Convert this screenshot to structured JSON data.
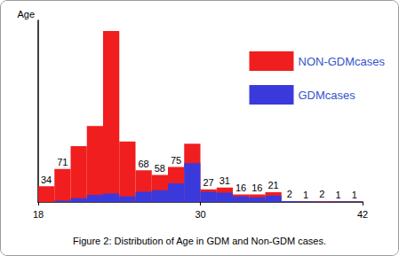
{
  "chart_data": {
    "type": "histogram",
    "title": "Figure 2: Distribution of Age in GDM and Non-GDM cases.",
    "y_label": "Age",
    "bins": [
      18,
      19.2,
      20.4,
      21.6,
      22.8,
      24,
      25.2,
      26.4,
      27.6,
      28.8,
      30,
      31.2,
      32.4,
      33.6,
      34.8,
      36,
      37.2,
      38.4,
      39.6,
      40.8,
      42
    ],
    "series": [
      {
        "name": "NON-GDMcases",
        "color": "#f01e1e",
        "values": [
          34,
          71,
          120,
          163,
          367,
          130,
          68,
          58,
          75,
          125,
          27,
          31,
          16,
          16,
          21,
          2,
          1,
          2,
          1,
          1
        ],
        "value_labels": [
          "34",
          "71",
          null,
          null,
          null,
          null,
          "68",
          "58",
          "75",
          null,
          "27",
          "31",
          "16",
          "16",
          "21",
          "2",
          "1",
          "2",
          "1",
          "1"
        ]
      },
      {
        "name": "GDMcases",
        "color": "#3a3adc",
        "values": [
          0,
          3,
          8,
          15,
          18,
          12,
          22,
          25,
          40,
          83,
          22,
          20,
          12,
          10,
          14,
          2,
          1,
          1,
          1,
          1
        ]
      }
    ],
    "xlim": [
      18,
      42
    ],
    "xticks": [
      18,
      30,
      42
    ],
    "ylim": [
      0,
      390
    ],
    "yticks": [],
    "legend": "upper right",
    "tick_labels": "x",
    "data_labels": true
  }
}
